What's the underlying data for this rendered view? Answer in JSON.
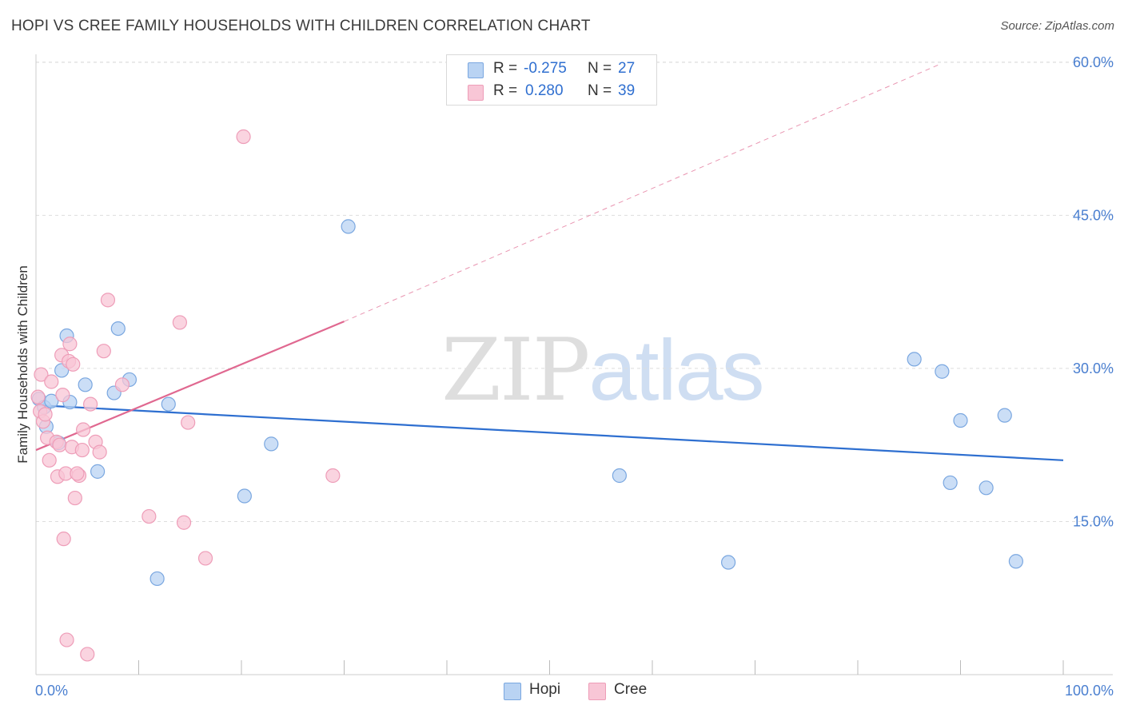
{
  "header": {
    "title": "HOPI VS CREE FAMILY HOUSEHOLDS WITH CHILDREN CORRELATION CHART",
    "source": "Source: ZipAtlas.com"
  },
  "stats": {
    "hopi": {
      "r_label": "R = ",
      "r_value": "-0.275",
      "n_label": "N = ",
      "n_value": "27"
    },
    "cree": {
      "r_label": "R = ",
      "r_value": "0.280",
      "n_label": "N = ",
      "n_value": "39"
    }
  },
  "legend": {
    "hopi": "Hopi",
    "cree": "Cree"
  },
  "watermark": {
    "zip": "ZIP",
    "atlas": "atlas"
  },
  "colors": {
    "hopi_fill": "#b9d3f3",
    "hopi_stroke": "#7aa7e0",
    "hopi_line": "#2e6fd0",
    "cree_fill": "#f8c6d6",
    "cree_stroke": "#ee9db8",
    "cree_line": "#e06890",
    "grid": "#dddddd",
    "tick_text": "#4a7fd0"
  },
  "chart_data": {
    "type": "scatter",
    "title": "HOPI VS CREE FAMILY HOUSEHOLDS WITH CHILDREN CORRELATION CHART",
    "xlabel": "",
    "ylabel": "Family Households with Children",
    "xlim": [
      0,
      100
    ],
    "ylim": [
      0,
      63
    ],
    "yticks": [
      15,
      30,
      45,
      60
    ],
    "ytick_labels": [
      "15.0%",
      "30.0%",
      "45.0%",
      "60.0%"
    ],
    "xtick_labels": [
      "0.0%",
      "100.0%"
    ],
    "series": [
      {
        "name": "Hopi",
        "x": [
          0.3,
          0.8,
          1.5,
          1.0,
          2.2,
          3.3,
          2.5,
          4.8,
          3.0,
          6.0,
          8.0,
          7.6,
          9.1,
          11.8,
          12.9,
          22.9,
          20.3,
          30.4,
          56.8,
          67.4,
          85.5,
          88.2,
          95.4,
          90.0,
          94.3,
          92.5,
          89.0
        ],
        "y": [
          27.0,
          26.2,
          26.8,
          24.3,
          22.7,
          26.7,
          29.8,
          28.4,
          33.2,
          19.9,
          33.9,
          27.6,
          28.9,
          9.4,
          26.5,
          22.6,
          17.5,
          43.9,
          19.5,
          11.0,
          30.9,
          29.7,
          11.1,
          24.9,
          25.4,
          18.3,
          18.8
        ]
      },
      {
        "name": "Cree",
        "x": [
          0.2,
          0.4,
          0.5,
          0.7,
          0.9,
          1.1,
          1.3,
          1.5,
          2.0,
          2.1,
          2.3,
          2.5,
          2.7,
          2.9,
          3.0,
          3.2,
          3.3,
          3.5,
          3.8,
          4.2,
          4.5,
          4.6,
          5.0,
          5.3,
          5.8,
          6.2,
          6.6,
          7.0,
          8.4,
          11.0,
          14.4,
          14.0,
          14.8,
          16.5,
          20.2,
          28.9,
          2.6,
          3.6,
          4.0
        ],
        "y": [
          27.2,
          25.8,
          29.4,
          24.8,
          25.5,
          23.2,
          21.0,
          28.7,
          22.8,
          19.4,
          22.5,
          31.3,
          13.3,
          19.7,
          3.4,
          30.7,
          32.4,
          22.3,
          17.3,
          19.5,
          22.0,
          24.0,
          2.0,
          26.5,
          22.8,
          21.8,
          31.7,
          36.7,
          28.4,
          15.5,
          14.9,
          34.5,
          24.7,
          11.4,
          52.7,
          19.5,
          27.4,
          30.4,
          19.7
        ]
      }
    ],
    "trendlines": [
      {
        "name": "Hopi",
        "x": [
          0,
          100
        ],
        "y": [
          26.4,
          21.0
        ],
        "style": "solid"
      },
      {
        "name": "Cree",
        "x": [
          0,
          30
        ],
        "y": [
          22.0,
          34.6
        ],
        "style": "solid"
      },
      {
        "name": "Cree",
        "x": [
          30,
          88
        ],
        "y": [
          34.6,
          59.8
        ],
        "style": "dashed"
      }
    ]
  }
}
